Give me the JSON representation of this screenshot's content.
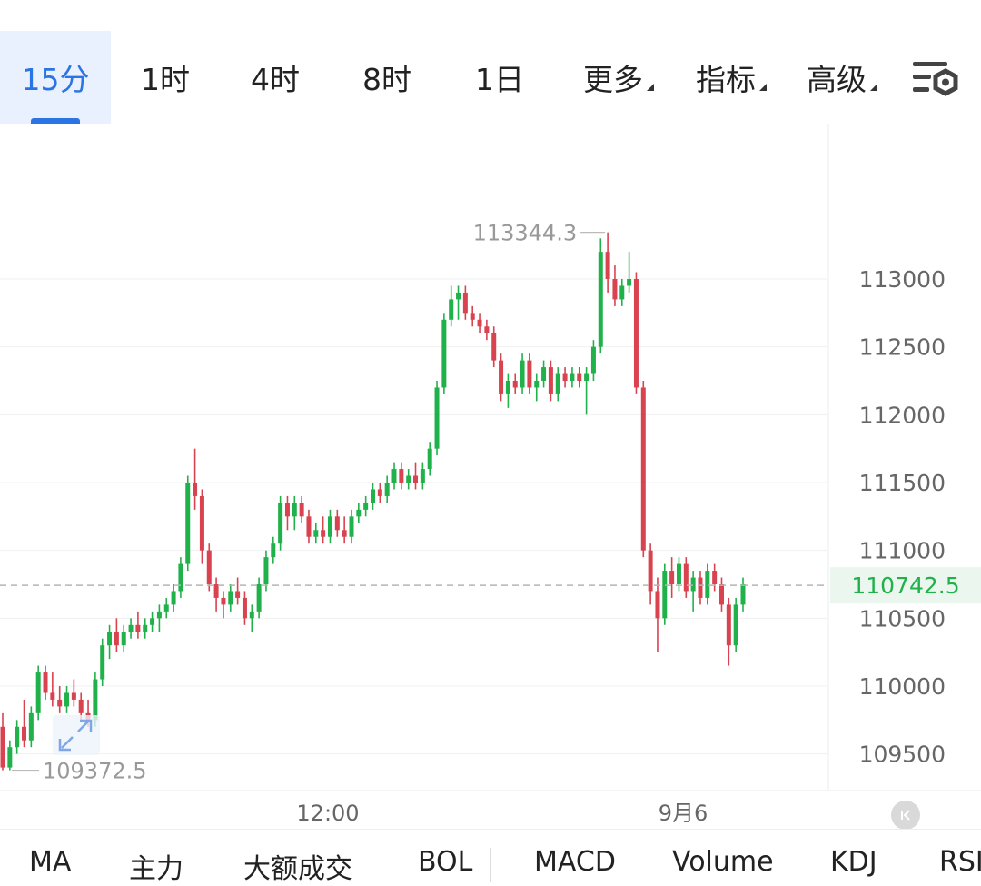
{
  "tabs": [
    {
      "label": "15分",
      "active": true
    },
    {
      "label": "1时"
    },
    {
      "label": "4时"
    },
    {
      "label": "8时"
    },
    {
      "label": "1日"
    }
  ],
  "dropdowns": [
    {
      "label": "更多"
    },
    {
      "label": "指标"
    },
    {
      "label": "高级"
    }
  ],
  "settings_icon": "chart-settings-icon",
  "indicators": [
    "MA",
    "主力",
    "大额成交",
    "BOL",
    "MACD",
    "Volume",
    "KDJ",
    "RSI"
  ],
  "colors": {
    "up": "#21b14b",
    "down": "#d9424f",
    "accent": "#2b74e4",
    "last_price": "#21b14b"
  },
  "chart_data": {
    "type": "candlestick",
    "y_ticks": [
      113000,
      112500,
      112000,
      111500,
      111000,
      110500,
      110000,
      109500
    ],
    "ylim": [
      109200,
      113900
    ],
    "x_labels": [
      "12:00",
      "9月6"
    ],
    "last_price": "110742.5",
    "high_label": "113344.3",
    "low_label": "109372.5",
    "candles": [
      [
        109700,
        109800,
        109380,
        109400
      ],
      [
        109400,
        109600,
        109380,
        109550
      ],
      [
        109550,
        109750,
        109500,
        109700
      ],
      [
        109700,
        109900,
        109550,
        109600
      ],
      [
        109600,
        109850,
        109550,
        109800
      ],
      [
        109800,
        110150,
        109750,
        110100
      ],
      [
        110100,
        110150,
        109900,
        109950
      ],
      [
        109950,
        110100,
        109850,
        109900
      ],
      [
        109900,
        110000,
        109800,
        109850
      ],
      [
        109850,
        110000,
        109800,
        109950
      ],
      [
        109950,
        110050,
        109850,
        109900
      ],
      [
        109900,
        109950,
        109750,
        109800
      ],
      [
        109800,
        109900,
        109700,
        109750
      ],
      [
        109750,
        110100,
        109700,
        110050
      ],
      [
        110050,
        110350,
        110000,
        110300
      ],
      [
        110300,
        110450,
        110200,
        110400
      ],
      [
        110400,
        110500,
        110250,
        110300
      ],
      [
        110300,
        110450,
        110250,
        110400
      ],
      [
        110400,
        110500,
        110350,
        110450
      ],
      [
        110450,
        110550,
        110350,
        110400
      ],
      [
        110400,
        110500,
        110350,
        110450
      ],
      [
        110450,
        110550,
        110400,
        110500
      ],
      [
        110500,
        110600,
        110400,
        110550
      ],
      [
        110550,
        110650,
        110500,
        110600
      ],
      [
        110600,
        110750,
        110550,
        110700
      ],
      [
        110700,
        110950,
        110650,
        110900
      ],
      [
        110900,
        111550,
        110850,
        111500
      ],
      [
        111500,
        111750,
        111300,
        111400
      ],
      [
        111400,
        111450,
        110900,
        111000
      ],
      [
        111000,
        111050,
        110700,
        110750
      ],
      [
        110750,
        110800,
        110550,
        110650
      ],
      [
        110650,
        110700,
        110500,
        110600
      ],
      [
        110600,
        110750,
        110550,
        110700
      ],
      [
        110700,
        110800,
        110600,
        110650
      ],
      [
        110650,
        110700,
        110450,
        110500
      ],
      [
        110500,
        110600,
        110400,
        110550
      ],
      [
        110550,
        110800,
        110500,
        110750
      ],
      [
        110750,
        111000,
        110700,
        110950
      ],
      [
        110950,
        111100,
        110900,
        111050
      ],
      [
        111050,
        111400,
        111000,
        111350
      ],
      [
        111350,
        111400,
        111150,
        111250
      ],
      [
        111250,
        111400,
        111150,
        111350
      ],
      [
        111350,
        111400,
        111200,
        111250
      ],
      [
        111250,
        111300,
        111050,
        111100
      ],
      [
        111100,
        111200,
        111050,
        111150
      ],
      [
        111150,
        111250,
        111050,
        111100
      ],
      [
        111100,
        111300,
        111050,
        111250
      ],
      [
        111250,
        111300,
        111100,
        111150
      ],
      [
        111150,
        111250,
        111050,
        111100
      ],
      [
        111100,
        111300,
        111050,
        111250
      ],
      [
        111250,
        111350,
        111200,
        111300
      ],
      [
        111300,
        111400,
        111250,
        111350
      ],
      [
        111350,
        111500,
        111300,
        111450
      ],
      [
        111450,
        111500,
        111350,
        111400
      ],
      [
        111400,
        111550,
        111350,
        111500
      ],
      [
        111500,
        111650,
        111450,
        111600
      ],
      [
        111600,
        111650,
        111450,
        111500
      ],
      [
        111500,
        111600,
        111450,
        111550
      ],
      [
        111550,
        111650,
        111450,
        111500
      ],
      [
        111500,
        111650,
        111450,
        111600
      ],
      [
        111600,
        111800,
        111550,
        111750
      ],
      [
        111750,
        112250,
        111700,
        112200
      ],
      [
        112200,
        112750,
        112150,
        112700
      ],
      [
        112700,
        112950,
        112650,
        112850
      ],
      [
        112850,
        112950,
        112700,
        112900
      ],
      [
        112900,
        112950,
        112700,
        112750
      ],
      [
        112750,
        112800,
        112650,
        112700
      ],
      [
        112700,
        112750,
        112600,
        112650
      ],
      [
        112650,
        112700,
        112550,
        112600
      ],
      [
        112600,
        112650,
        112350,
        112400
      ],
      [
        112400,
        112450,
        112100,
        112150
      ],
      [
        112150,
        112300,
        112050,
        112250
      ],
      [
        112250,
        112300,
        112150,
        112200
      ],
      [
        112200,
        112450,
        112150,
        112400
      ],
      [
        112400,
        112450,
        112150,
        112200
      ],
      [
        112200,
        112300,
        112100,
        112250
      ],
      [
        112250,
        112400,
        112200,
        112350
      ],
      [
        112350,
        112400,
        112100,
        112150
      ],
      [
        112150,
        112350,
        112100,
        112300
      ],
      [
        112300,
        112350,
        112200,
        112250
      ],
      [
        112250,
        112350,
        112200,
        112300
      ],
      [
        112300,
        112350,
        112200,
        112250
      ],
      [
        112250,
        112350,
        112000,
        112300
      ],
      [
        112300,
        112550,
        112250,
        112500
      ],
      [
        112500,
        113300,
        112450,
        113200
      ],
      [
        113200,
        113344,
        112900,
        113000
      ],
      [
        113000,
        113100,
        112800,
        112850
      ],
      [
        112850,
        113000,
        112800,
        112950
      ],
      [
        112950,
        113200,
        112900,
        113000
      ],
      [
        113000,
        113050,
        112150,
        112200
      ],
      [
        112200,
        112250,
        110950,
        111000
      ],
      [
        111000,
        111050,
        110600,
        110700
      ],
      [
        110700,
        110800,
        110250,
        110500
      ],
      [
        110500,
        110900,
        110450,
        110850
      ],
      [
        110850,
        110950,
        110650,
        110750
      ],
      [
        110750,
        110950,
        110700,
        110900
      ],
      [
        110900,
        110950,
        110650,
        110700
      ],
      [
        110700,
        110850,
        110550,
        110800
      ],
      [
        110800,
        110850,
        110600,
        110650
      ],
      [
        110650,
        110900,
        110600,
        110850
      ],
      [
        110850,
        110900,
        110700,
        110750
      ],
      [
        110750,
        110800,
        110550,
        110600
      ],
      [
        110600,
        110650,
        110150,
        110300
      ],
      [
        110300,
        110650,
        110250,
        110600
      ],
      [
        110600,
        110800,
        110550,
        110750
      ]
    ]
  }
}
